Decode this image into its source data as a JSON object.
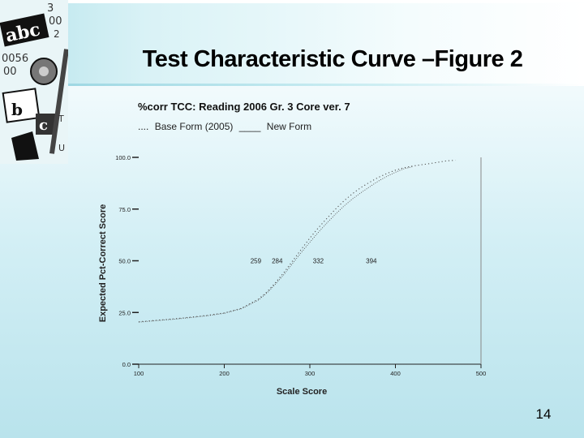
{
  "slide": {
    "title": "Test Characteristic Curve –Figure 2",
    "page_number": "14"
  },
  "colors": {
    "background_top": "#ffffff",
    "background_bottom": "#b9e3ec",
    "title_band": "#b7e4ec",
    "axis": "#222222",
    "curve": "#555555"
  },
  "chart_data": {
    "type": "line",
    "title": "%corr TCC: Reading 2006 Gr. 3 Core ver. 7",
    "legend": [
      {
        "marker": "....",
        "label": "Base Form (2005)"
      },
      {
        "marker": "____",
        "label": "New Form"
      }
    ],
    "xlabel": "Scale Score",
    "ylabel": "Expected Pct-Correct Score",
    "xlim": [
      100,
      500
    ],
    "ylim": [
      0,
      100
    ],
    "x_ticks": [
      "100",
      "200",
      "300",
      "400",
      "500"
    ],
    "y_ticks": [
      "0.0",
      "25.0",
      "50.0",
      "75.0",
      "100.0"
    ],
    "grid": false,
    "annotations": [
      {
        "label": "259",
        "x": 259,
        "y": 50
      },
      {
        "label": "284",
        "x": 284,
        "y": 50
      },
      {
        "label": "332",
        "x": 332,
        "y": 50
      },
      {
        "label": "394",
        "x": 394,
        "y": 50
      }
    ],
    "series": [
      {
        "name": "Base Form (2005)",
        "x": [
          100,
          120,
          140,
          160,
          180,
          200,
          220,
          240,
          250,
          260,
          270,
          280,
          290,
          300,
          310,
          320,
          330,
          340,
          350,
          360,
          370,
          380,
          390,
          400,
          410,
          420,
          440,
          460,
          470
        ],
        "y": [
          20.5,
          21.2,
          21.9,
          22.7,
          23.6,
          24.8,
          27.0,
          31.5,
          35.0,
          39.5,
          44.5,
          50.0,
          55.5,
          61.0,
          66.0,
          70.5,
          75.0,
          79.0,
          82.5,
          85.5,
          88.0,
          90.3,
          92.2,
          93.8,
          95.0,
          95.8,
          97.0,
          98.3,
          98.6
        ]
      },
      {
        "name": "New Form",
        "x": [
          100,
          120,
          140,
          160,
          180,
          200,
          220,
          240,
          250,
          260,
          270,
          280,
          290,
          300,
          310,
          320,
          330,
          340,
          350,
          360,
          370,
          380,
          390,
          400,
          410,
          420
        ],
        "y": [
          20.3,
          21.0,
          21.7,
          22.5,
          23.4,
          24.6,
          26.8,
          31.0,
          34.5,
          38.8,
          43.5,
          48.8,
          54.0,
          59.0,
          63.8,
          68.3,
          72.5,
          76.5,
          80.0,
          83.0,
          85.8,
          88.5,
          90.8,
          92.8,
          94.5,
          95.5
        ]
      }
    ]
  }
}
